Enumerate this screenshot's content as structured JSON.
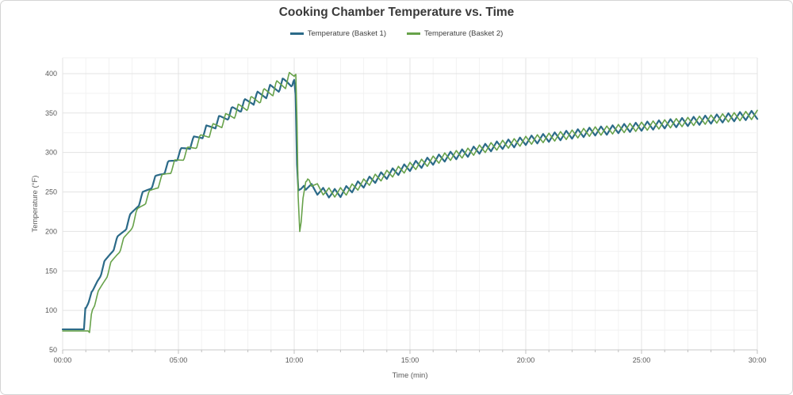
{
  "chart_data": {
    "type": "line",
    "title": "Cooking Chamber Temperature vs. Time",
    "xlabel": "Time (min)",
    "ylabel": "Temperature (°F)",
    "xlim_minutes": [
      0,
      30
    ],
    "ylim": [
      50,
      420
    ],
    "grid": {
      "x_minor_step_min": 1,
      "x_major_step_min": 5,
      "y_minor_step": 25,
      "y_major_step": 50,
      "y_top_line": 420
    },
    "x_ticks": [
      {
        "minute": 0,
        "label": "00:00"
      },
      {
        "minute": 5,
        "label": "05:00"
      },
      {
        "minute": 10,
        "label": "10:00"
      },
      {
        "minute": 15,
        "label": "15:00"
      },
      {
        "minute": 20,
        "label": "20:00"
      },
      {
        "minute": 25,
        "label": "25:00"
      },
      {
        "minute": 30,
        "label": "30:00"
      }
    ],
    "y_ticks": [
      50,
      100,
      150,
      200,
      250,
      300,
      350,
      400
    ],
    "legend_position": "top",
    "sample_step_minutes": 0.0416667,
    "series": [
      {
        "name": "Temperature (Basket 1)",
        "color": "#2b6a88",
        "stroke_width": 2.2,
        "trend_points": [
          [
            0,
            76
          ],
          [
            0.92,
            76
          ],
          [
            0.98,
            103
          ],
          [
            1.08,
            111
          ],
          [
            1.3,
            122
          ],
          [
            1.5,
            138
          ],
          [
            1.8,
            158
          ],
          [
            2.1,
            175
          ],
          [
            2.4,
            191
          ],
          [
            2.7,
            205
          ],
          [
            3.0,
            222
          ],
          [
            3.4,
            243
          ],
          [
            3.8,
            258
          ],
          [
            4.2,
            272
          ],
          [
            4.6,
            285
          ],
          [
            5.0,
            297
          ],
          [
            5.4,
            308
          ],
          [
            5.8,
            318
          ],
          [
            6.2,
            328
          ],
          [
            6.6,
            337
          ],
          [
            7.0,
            345
          ],
          [
            7.4,
            353
          ],
          [
            7.8,
            360
          ],
          [
            8.2,
            367
          ],
          [
            8.6,
            373
          ],
          [
            9.0,
            379
          ],
          [
            9.4,
            385
          ],
          [
            9.7,
            389
          ],
          [
            10.0,
            392
          ],
          [
            10.06,
            373
          ],
          [
            10.12,
            285
          ],
          [
            10.18,
            252
          ],
          [
            10.3,
            254
          ],
          [
            10.45,
            259
          ],
          [
            10.8,
            254
          ],
          [
            11.2,
            250
          ],
          [
            11.6,
            248
          ],
          [
            12.0,
            249
          ],
          [
            12.5,
            255
          ],
          [
            13.0,
            261
          ],
          [
            13.5,
            267
          ],
          [
            14.0,
            272
          ],
          [
            14.5,
            277
          ],
          [
            15.0,
            282
          ],
          [
            15.5,
            286
          ],
          [
            16.0,
            290
          ],
          [
            16.5,
            294
          ],
          [
            17.0,
            297
          ],
          [
            17.5,
            300
          ],
          [
            18.0,
            304
          ],
          [
            18.5,
            307
          ],
          [
            19.0,
            310
          ],
          [
            19.5,
            312
          ],
          [
            20.0,
            315
          ],
          [
            20.5,
            317
          ],
          [
            21.0,
            319
          ],
          [
            21.5,
            321
          ],
          [
            22.0,
            323
          ],
          [
            22.5,
            325
          ],
          [
            23.0,
            327
          ],
          [
            23.5,
            328
          ],
          [
            24.0,
            330
          ],
          [
            25.0,
            333
          ],
          [
            26.0,
            336
          ],
          [
            27.0,
            339
          ],
          [
            28.0,
            342
          ],
          [
            29.0,
            345
          ],
          [
            30.0,
            348
          ]
        ],
        "oscillation_segments": [
          {
            "from": 1.0,
            "to": 9.98,
            "amp_from": 4,
            "amp_to": 8,
            "period": 0.55,
            "rise_frac": 0.28,
            "offset": 0
          },
          {
            "from": 10.45,
            "to": 30,
            "amp_from": 5.5,
            "amp_to": 5.5,
            "period": 0.5,
            "rise_frac": 0.5,
            "offset": 0
          }
        ]
      },
      {
        "name": "Temperature (Basket 2)",
        "color": "#67a24a",
        "stroke_width": 1.6,
        "trend_points": [
          [
            0,
            74
          ],
          [
            1.1,
            74
          ],
          [
            1.16,
            72
          ],
          [
            1.24,
            95
          ],
          [
            1.34,
            107
          ],
          [
            1.5,
            118
          ],
          [
            1.75,
            135
          ],
          [
            2.05,
            155
          ],
          [
            2.35,
            172
          ],
          [
            2.65,
            188
          ],
          [
            2.95,
            205
          ],
          [
            3.25,
            226
          ],
          [
            3.65,
            243
          ],
          [
            4.05,
            258
          ],
          [
            4.45,
            272
          ],
          [
            4.85,
            285
          ],
          [
            5.25,
            297
          ],
          [
            5.65,
            308
          ],
          [
            6.05,
            319
          ],
          [
            6.45,
            329
          ],
          [
            6.85,
            338
          ],
          [
            7.25,
            347
          ],
          [
            7.65,
            355
          ],
          [
            8.05,
            362
          ],
          [
            8.45,
            369
          ],
          [
            8.85,
            376
          ],
          [
            9.25,
            383
          ],
          [
            9.6,
            389
          ],
          [
            9.9,
            395
          ],
          [
            10.07,
            399
          ],
          [
            10.12,
            340
          ],
          [
            10.17,
            245
          ],
          [
            10.24,
            200
          ],
          [
            10.3,
            212
          ],
          [
            10.38,
            242
          ],
          [
            10.5,
            263
          ],
          [
            10.65,
            266
          ],
          [
            11.0,
            255
          ],
          [
            11.4,
            250
          ],
          [
            11.8,
            249
          ],
          [
            12.2,
            251
          ],
          [
            12.6,
            256
          ],
          [
            13.0,
            261
          ],
          [
            13.5,
            267
          ],
          [
            14.0,
            272
          ],
          [
            14.5,
            277
          ],
          [
            15.0,
            282
          ],
          [
            15.5,
            286
          ],
          [
            16.0,
            290
          ],
          [
            16.5,
            294
          ],
          [
            17.0,
            297
          ],
          [
            17.5,
            300
          ],
          [
            18.0,
            304
          ],
          [
            18.5,
            307
          ],
          [
            19.0,
            310
          ],
          [
            19.5,
            312
          ],
          [
            20.0,
            315
          ],
          [
            20.5,
            317
          ],
          [
            21.0,
            319
          ],
          [
            21.5,
            321
          ],
          [
            22.0,
            323
          ],
          [
            22.5,
            325
          ],
          [
            23.0,
            327
          ],
          [
            23.5,
            328
          ],
          [
            24.0,
            330
          ],
          [
            25.0,
            333
          ],
          [
            26.0,
            336
          ],
          [
            27.0,
            339
          ],
          [
            28.0,
            342
          ],
          [
            29.0,
            345
          ],
          [
            30.0,
            348
          ]
        ],
        "oscillation_segments": [
          {
            "from": 1.3,
            "to": 10.02,
            "amp_from": 4,
            "amp_to": 9,
            "period": 0.55,
            "rise_frac": 0.28,
            "offset": 0.27
          },
          {
            "from": 10.55,
            "to": 30,
            "amp_from": 5.5,
            "amp_to": 5.5,
            "period": 0.5,
            "rise_frac": 0.5,
            "offset": 0.25
          }
        ]
      }
    ]
  },
  "colors": {
    "background": "#ffffff",
    "frame_border": "#d4d4d4",
    "grid_major": "#e3e3e3",
    "grid_minor": "#f2f2f2",
    "axis_line": "#c8c8c8",
    "tick": "#bfbfbf",
    "title_text": "#3a3a3a",
    "axis_text": "#595959"
  }
}
